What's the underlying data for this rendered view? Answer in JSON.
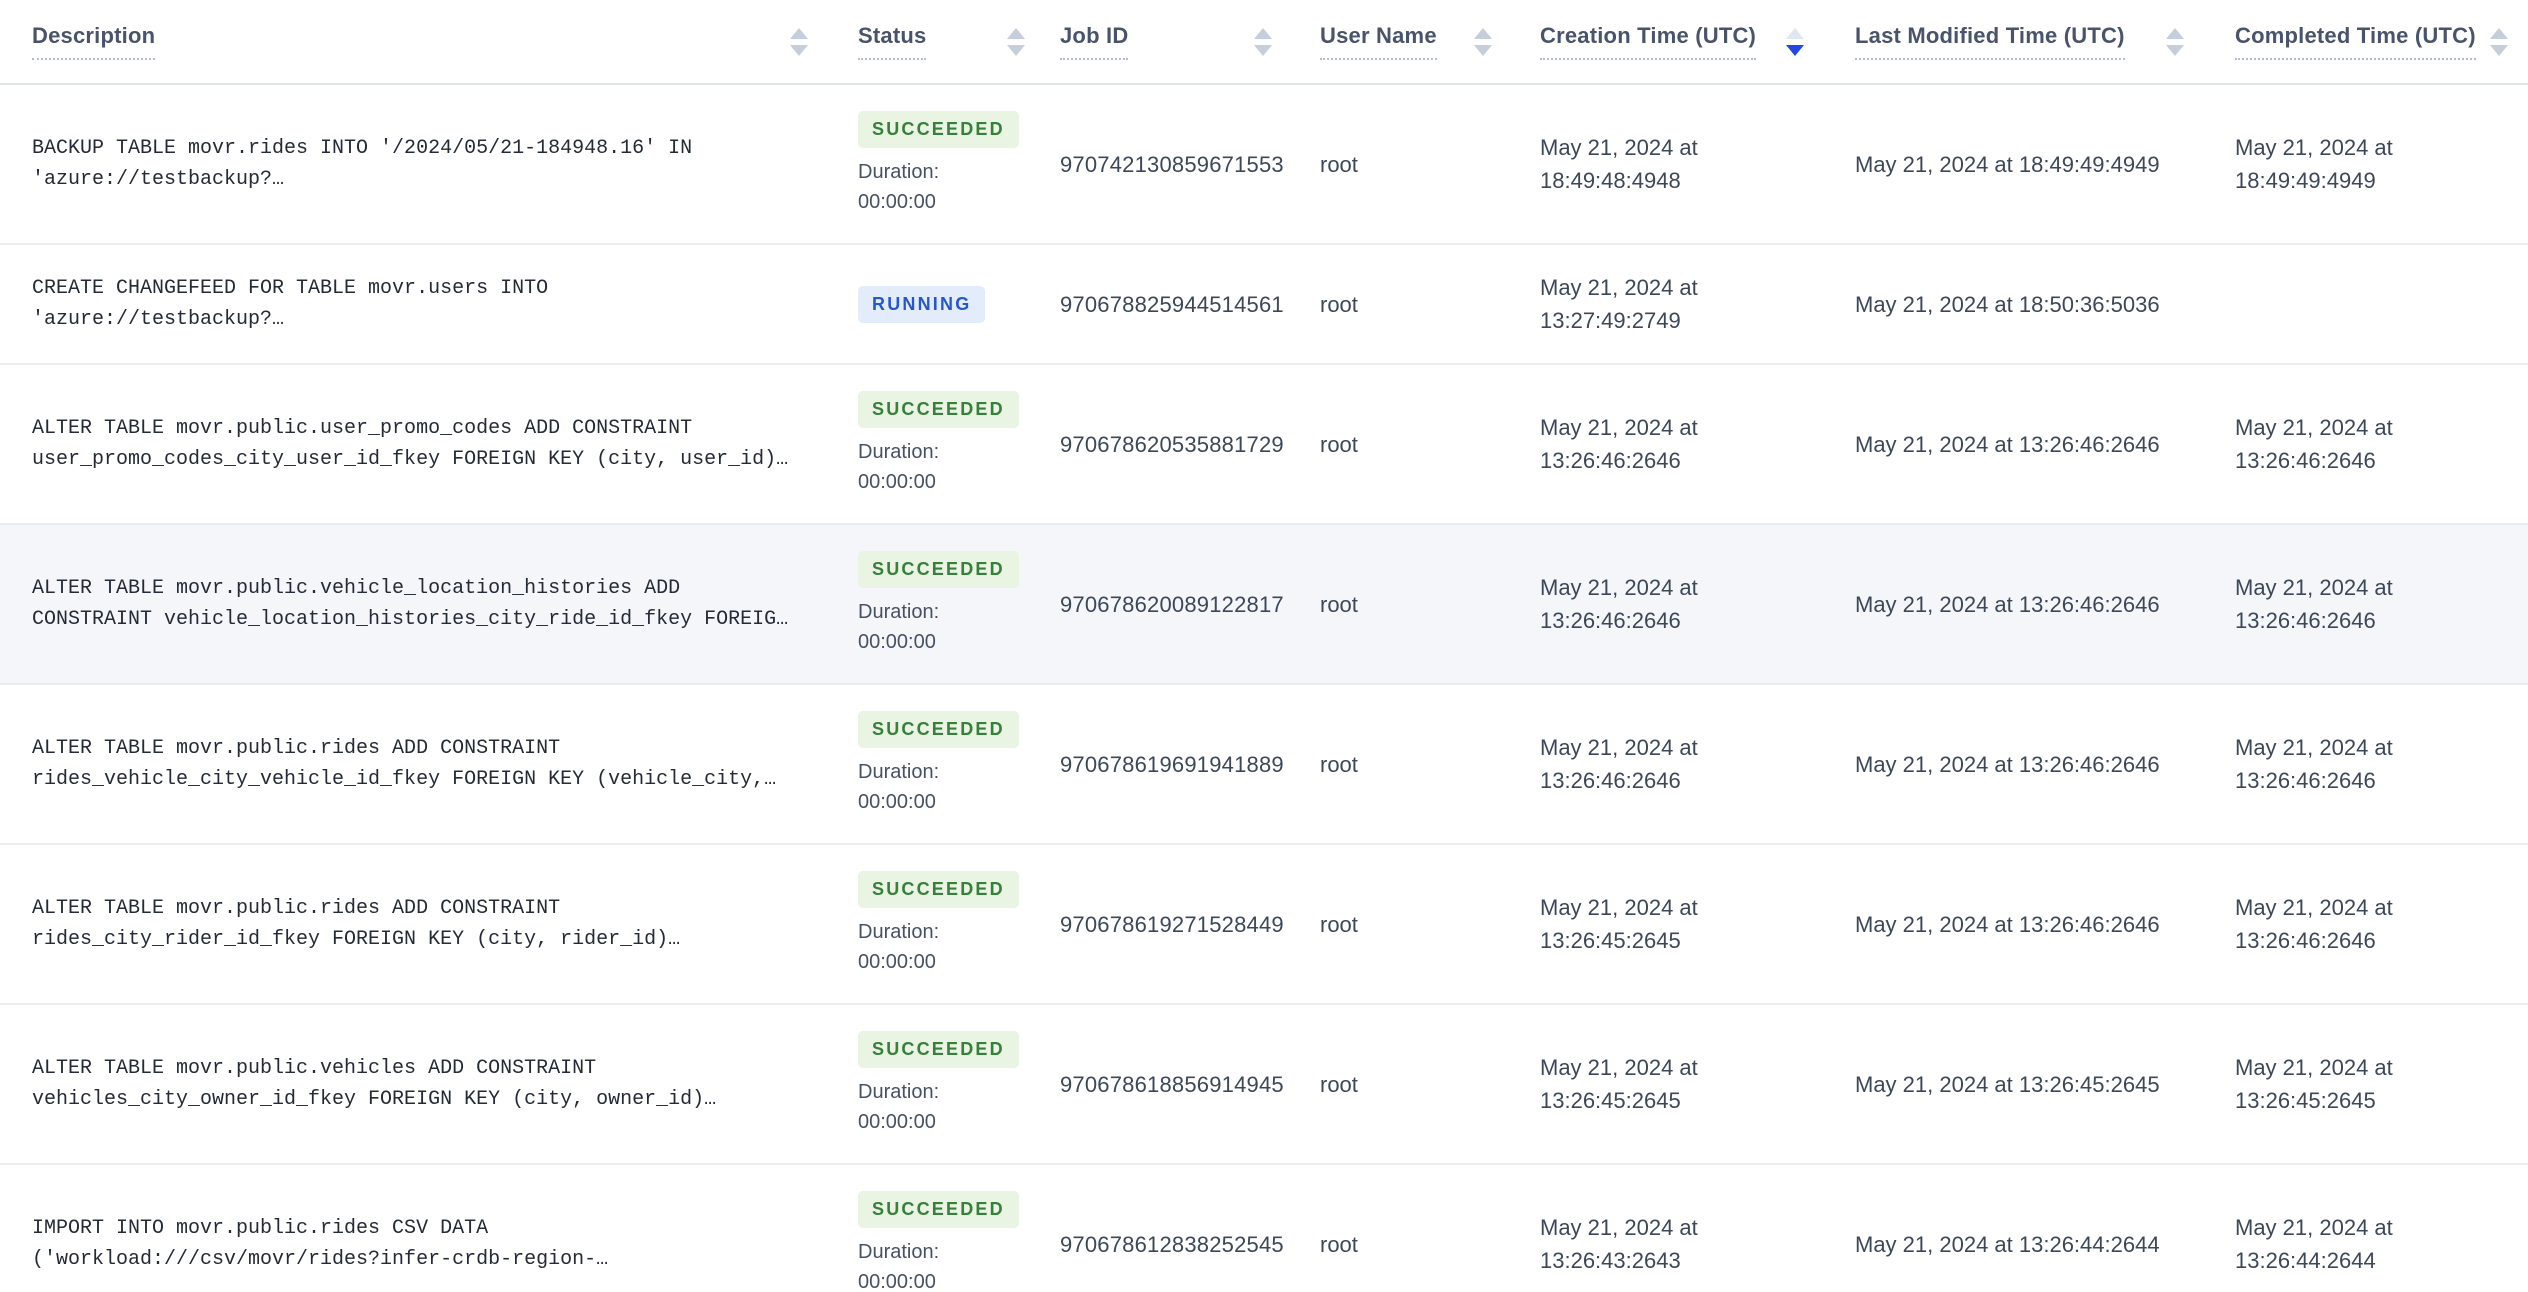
{
  "table": {
    "columns": [
      {
        "label": "Description",
        "sort": "none"
      },
      {
        "label": "Status",
        "sort": "none"
      },
      {
        "label": "Job ID",
        "sort": "none"
      },
      {
        "label": "User Name",
        "sort": "none"
      },
      {
        "label": "Creation Time (UTC)",
        "sort": "desc"
      },
      {
        "label": "Last Modified Time (UTC)",
        "sort": "none"
      },
      {
        "label": "Completed Time (UTC)",
        "sort": "none"
      }
    ],
    "duration_label": "Duration:",
    "duration_value": "00:00:00",
    "rows": [
      {
        "description": "BACKUP TABLE movr.rides INTO '/2024/05/21-184948.16' IN 'azure://testbackup?…",
        "status": "SUCCEEDED",
        "has_duration": true,
        "highlighted": false,
        "job_id": "970742130859671553",
        "user": "root",
        "created": "May 21, 2024 at 18:49:48:4948",
        "modified": "May 21, 2024 at 18:49:49:4949",
        "completed": "May 21, 2024 at 18:49:49:4949"
      },
      {
        "description": "CREATE CHANGEFEED FOR TABLE movr.users INTO 'azure://testbackup?…",
        "status": "RUNNING",
        "has_duration": false,
        "highlighted": false,
        "job_id": "970678825944514561",
        "user": "root",
        "created": "May 21, 2024 at 13:27:49:2749",
        "modified": "May 21, 2024 at 18:50:36:5036",
        "completed": ""
      },
      {
        "description": "ALTER TABLE movr.public.user_promo_codes ADD CONSTRAINT user_promo_codes_city_user_id_fkey FOREIGN KEY (city, user_id)…",
        "status": "SUCCEEDED",
        "has_duration": true,
        "highlighted": false,
        "job_id": "970678620535881729",
        "user": "root",
        "created": "May 21, 2024 at 13:26:46:2646",
        "modified": "May 21, 2024 at 13:26:46:2646",
        "completed": "May 21, 2024 at 13:26:46:2646"
      },
      {
        "description": "ALTER TABLE movr.public.vehicle_location_histories ADD CONSTRAINT vehicle_location_histories_city_ride_id_fkey FOREIG…",
        "status": "SUCCEEDED",
        "has_duration": true,
        "highlighted": true,
        "job_id": "970678620089122817",
        "user": "root",
        "created": "May 21, 2024 at 13:26:46:2646",
        "modified": "May 21, 2024 at 13:26:46:2646",
        "completed": "May 21, 2024 at 13:26:46:2646"
      },
      {
        "description": "ALTER TABLE movr.public.rides ADD CONSTRAINT rides_vehicle_city_vehicle_id_fkey FOREIGN KEY (vehicle_city,…",
        "status": "SUCCEEDED",
        "has_duration": true,
        "highlighted": false,
        "job_id": "970678619691941889",
        "user": "root",
        "created": "May 21, 2024 at 13:26:46:2646",
        "modified": "May 21, 2024 at 13:26:46:2646",
        "completed": "May 21, 2024 at 13:26:46:2646"
      },
      {
        "description": "ALTER TABLE movr.public.rides ADD CONSTRAINT rides_city_rider_id_fkey FOREIGN KEY (city, rider_id)…",
        "status": "SUCCEEDED",
        "has_duration": true,
        "highlighted": false,
        "job_id": "970678619271528449",
        "user": "root",
        "created": "May 21, 2024 at 13:26:45:2645",
        "modified": "May 21, 2024 at 13:26:46:2646",
        "completed": "May 21, 2024 at 13:26:46:2646"
      },
      {
        "description": "ALTER TABLE movr.public.vehicles ADD CONSTRAINT vehicles_city_owner_id_fkey FOREIGN KEY (city, owner_id)…",
        "status": "SUCCEEDED",
        "has_duration": true,
        "highlighted": false,
        "job_id": "970678618856914945",
        "user": "root",
        "created": "May 21, 2024 at 13:26:45:2645",
        "modified": "May 21, 2024 at 13:26:45:2645",
        "completed": "May 21, 2024 at 13:26:45:2645"
      },
      {
        "description": "IMPORT INTO movr.public.rides CSV DATA ('workload:///csv/movr/rides?infer-crdb-region-…",
        "status": "SUCCEEDED",
        "has_duration": true,
        "highlighted": false,
        "job_id": "970678612838252545",
        "user": "root",
        "created": "May 21, 2024 at 13:26:43:2643",
        "modified": "May 21, 2024 at 13:26:44:2644",
        "completed": "May 21, 2024 at 13:26:44:2644"
      }
    ]
  },
  "colors": {
    "succeeded_badge_bg": "#e9f4e2",
    "succeeded_badge_text": "#36803b",
    "running_badge_bg": "#e3ecfb",
    "running_badge_text": "#2458cb",
    "active_sort_arrow": "#2249e5",
    "header_text": "#49536a",
    "row_highlight_bg": "#f4f6fa"
  }
}
